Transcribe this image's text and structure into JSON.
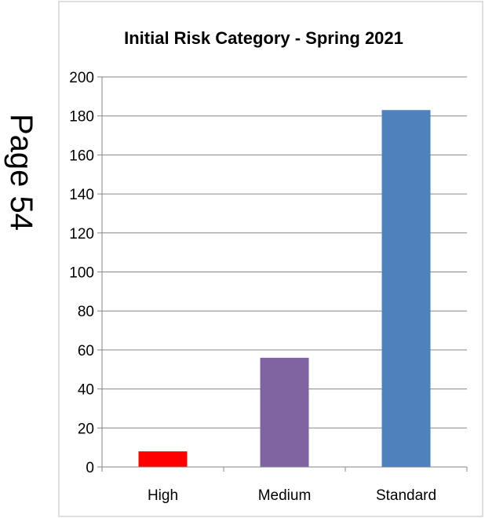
{
  "page_label": "Page 54",
  "chart_data": {
    "type": "bar",
    "title": "Initial Risk Category - Spring 2021",
    "xlabel": "",
    "ylabel": "",
    "categories": [
      "High",
      "Medium",
      "Standard"
    ],
    "values": [
      8,
      56,
      183
    ],
    "colors": [
      "#ff0000",
      "#8064a2",
      "#4f81bd"
    ],
    "ylim": [
      0,
      200
    ],
    "yticks": [
      0,
      20,
      40,
      60,
      80,
      100,
      120,
      140,
      160,
      180,
      200
    ],
    "grid": true,
    "legend": "none"
  }
}
